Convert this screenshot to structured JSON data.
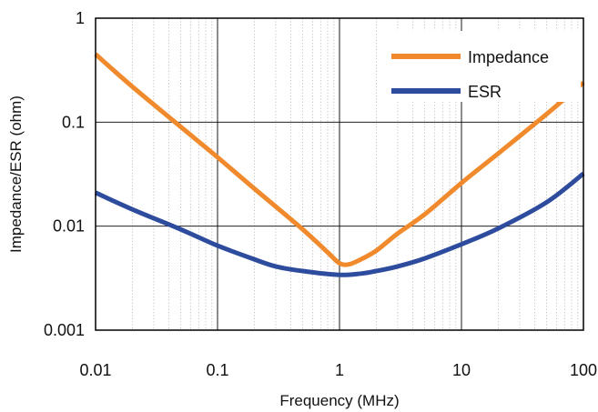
{
  "chart_data": {
    "type": "line",
    "xscale": "log",
    "yscale": "log",
    "xlim": [
      0.01,
      100
    ],
    "ylim": [
      0.001,
      1
    ],
    "xlabel": "Frequency  (MHz)",
    "ylabel": "Impedance/ESR (ohm)",
    "x_ticks": [
      0.01,
      0.1,
      1,
      10,
      100
    ],
    "x_tick_labels": [
      "0.01",
      "0.1",
      "1",
      "10",
      "100"
    ],
    "y_ticks": [
      0.001,
      0.01,
      0.1,
      1
    ],
    "y_tick_labels": [
      "0.001",
      "0.01",
      "0.1",
      "1"
    ],
    "grid": true,
    "legend_position": "top-right",
    "series": [
      {
        "name": "Impedance",
        "color": "#F08A2C",
        "x": [
          0.01,
          0.02,
          0.05,
          0.1,
          0.2,
          0.5,
          0.8,
          1.0,
          1.2,
          1.5,
          2,
          3,
          5,
          10,
          20,
          50,
          100
        ],
        "y": [
          0.45,
          0.22,
          0.09,
          0.046,
          0.023,
          0.0093,
          0.0056,
          0.0044,
          0.0043,
          0.0048,
          0.0058,
          0.0085,
          0.013,
          0.026,
          0.05,
          0.12,
          0.24
        ]
      },
      {
        "name": "ESR",
        "color": "#2E4C9E",
        "x": [
          0.01,
          0.02,
          0.05,
          0.1,
          0.2,
          0.3,
          0.5,
          1,
          1.5,
          2,
          3,
          5,
          10,
          20,
          50,
          100
        ],
        "y": [
          0.021,
          0.0145,
          0.0093,
          0.0065,
          0.0048,
          0.0041,
          0.0037,
          0.0034,
          0.0035,
          0.0037,
          0.0041,
          0.0049,
          0.0067,
          0.0095,
          0.017,
          0.032
        ]
      }
    ]
  }
}
